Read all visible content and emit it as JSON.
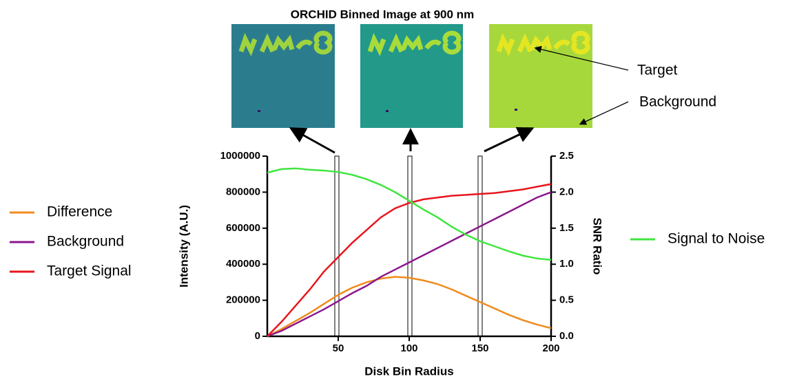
{
  "chart_data": {
    "type": "line",
    "title": "ORCHID Binned Image at 900 nm",
    "annotations": [
      "Target",
      "Background"
    ],
    "x_label": "Disk Bin Radius",
    "y_label": "Intensity (A.U.)",
    "y2_label": "SNR Ratio",
    "x": [
      0,
      10,
      20,
      30,
      40,
      50,
      60,
      70,
      80,
      90,
      100,
      110,
      120,
      130,
      140,
      150,
      160,
      170,
      180,
      190,
      200
    ],
    "xlim": [
      0,
      200
    ],
    "xticks": [
      50,
      100,
      150,
      200
    ],
    "ylim": [
      0,
      1000000
    ],
    "yticks": [
      0,
      200000,
      400000,
      600000,
      800000,
      1000000
    ],
    "y2lim": [
      0,
      2.5
    ],
    "y2ticks": [
      {
        "value": 0,
        "label": "0.0"
      },
      0.5,
      {
        "value": 1,
        "label": "1.0"
      },
      1.5,
      {
        "value": 2,
        "label": "2.0"
      },
      2.5
    ],
    "series": [
      {
        "name": "Difference",
        "color": "#f08a1c",
        "values": [
          0,
          40000,
          85000,
          130000,
          180000,
          230000,
          270000,
          300000,
          320000,
          330000,
          325000,
          310000,
          290000,
          260000,
          225000,
          190000,
          155000,
          120000,
          90000,
          65000,
          45000
        ]
      },
      {
        "name": "Background",
        "color": "#8b168f",
        "values": [
          0,
          30000,
          70000,
          110000,
          150000,
          195000,
          240000,
          280000,
          330000,
          370000,
          410000,
          450000,
          490000,
          530000,
          570000,
          610000,
          650000,
          690000,
          730000,
          770000,
          800000
        ]
      },
      {
        "name": "Target Signal",
        "color": "#e8141c",
        "values": [
          0,
          80000,
          170000,
          260000,
          360000,
          440000,
          520000,
          590000,
          660000,
          710000,
          740000,
          760000,
          770000,
          780000,
          785000,
          790000,
          795000,
          805000,
          815000,
          830000,
          845000
        ]
      },
      {
        "name": "Signal to Noise",
        "color": "#3ee63e",
        "axis": "y2",
        "values": [
          2.27,
          2.32,
          2.33,
          2.31,
          2.3,
          2.28,
          2.24,
          2.18,
          2.1,
          2.0,
          1.88,
          1.76,
          1.65,
          1.52,
          1.41,
          1.32,
          1.25,
          1.18,
          1.12,
          1.08,
          1.06
        ]
      }
    ]
  }
}
